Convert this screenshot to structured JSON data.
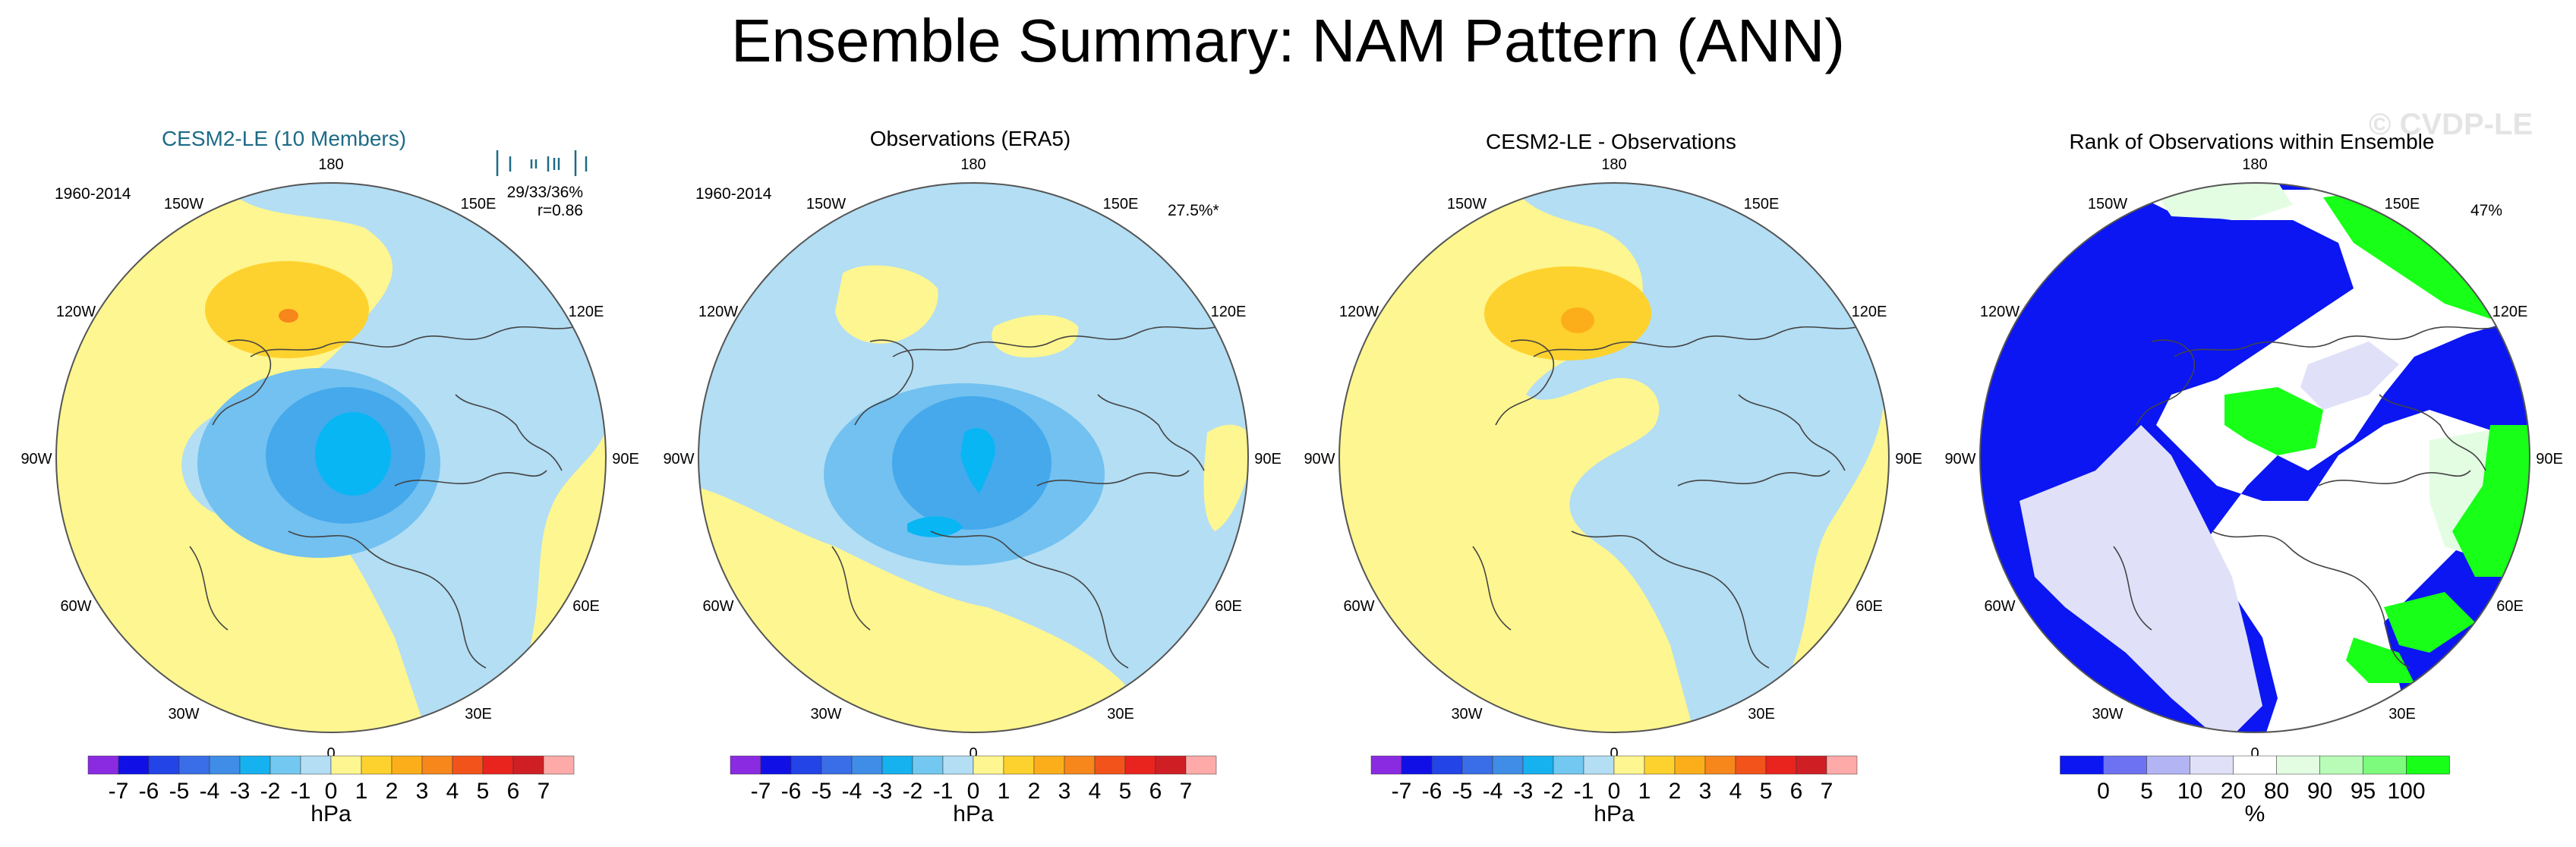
{
  "figure": {
    "title": "Ensemble Summary: NAM Pattern (ANN)",
    "watermark": "© CVDP-LE"
  },
  "colors": {
    "yellow": "#fef690",
    "light_orange": "#fed22e",
    "orange": "#fcae1a",
    "dark_orange": "#f7861b",
    "light_blue": "#b3def4",
    "mid_blue": "#72c1f0",
    "blue": "#45a9ec",
    "cyan": "#08b6f4",
    "rank_blue": "#0b16f2",
    "rank_lavender": "#e0e0f8",
    "rank_green": "#18ff18",
    "rank_light_green": "#e3fde3"
  },
  "chart_data": [
    {
      "type": "heatmap",
      "name": "cesm2-le",
      "title": "CESM2-LE (10 Members)",
      "period": "1960-2014",
      "stat_line1": "29/33/36%",
      "stat_line2": "r=0.86",
      "longitude_labels": [
        "180",
        "150E",
        "120E",
        "90E",
        "60E",
        "30E",
        "0",
        "30W",
        "60W",
        "90W",
        "120W",
        "150W"
      ],
      "colorbar": {
        "levels": [
          "-7",
          "-6",
          "-5",
          "-4",
          "-3",
          "-2",
          "-1",
          "0",
          "1",
          "2",
          "3",
          "4",
          "5",
          "6",
          "7"
        ],
        "colors": [
          "#8a2be2",
          "#1010e6",
          "#2344e6",
          "#3a6ee8",
          "#3f8de6",
          "#16b1ef",
          "#72c8f0",
          "#b3def4",
          "#fef690",
          "#fed22e",
          "#fcae1a",
          "#f7861b",
          "#f2531a",
          "#e9231e",
          "#cf1f25",
          "#fdaaa8"
        ],
        "unit": "hPa"
      }
    },
    {
      "type": "heatmap",
      "name": "observations",
      "title": "Observations (ERA5)",
      "period": "1960-2014",
      "stat_line1": "27.5%*",
      "longitude_labels": [
        "180",
        "150E",
        "120E",
        "90E",
        "60E",
        "30E",
        "0",
        "30W",
        "60W",
        "90W",
        "120W",
        "150W"
      ],
      "colorbar": {
        "levels": [
          "-7",
          "-6",
          "-5",
          "-4",
          "-3",
          "-2",
          "-1",
          "0",
          "1",
          "2",
          "3",
          "4",
          "5",
          "6",
          "7"
        ],
        "colors": [
          "#8a2be2",
          "#1010e6",
          "#2344e6",
          "#3a6ee8",
          "#3f8de6",
          "#16b1ef",
          "#72c8f0",
          "#b3def4",
          "#fef690",
          "#fed22e",
          "#fcae1a",
          "#f7861b",
          "#f2531a",
          "#e9231e",
          "#cf1f25",
          "#fdaaa8"
        ],
        "unit": "hPa"
      }
    },
    {
      "type": "heatmap",
      "name": "difference",
      "title": "CESM2-LE - Observations",
      "longitude_labels": [
        "180",
        "150E",
        "120E",
        "90E",
        "60E",
        "30E",
        "0",
        "30W",
        "60W",
        "90W",
        "120W",
        "150W"
      ],
      "colorbar": {
        "levels": [
          "-7",
          "-6",
          "-5",
          "-4",
          "-3",
          "-2",
          "-1",
          "0",
          "1",
          "2",
          "3",
          "4",
          "5",
          "6",
          "7"
        ],
        "colors": [
          "#8a2be2",
          "#1010e6",
          "#2344e6",
          "#3a6ee8",
          "#3f8de6",
          "#16b1ef",
          "#72c8f0",
          "#b3def4",
          "#fef690",
          "#fed22e",
          "#fcae1a",
          "#f7861b",
          "#f2531a",
          "#e9231e",
          "#cf1f25",
          "#fdaaa8"
        ],
        "unit": "hPa"
      }
    },
    {
      "type": "heatmap",
      "name": "rank",
      "title": "Rank of Observations within Ensemble",
      "stat_line1": "47%",
      "longitude_labels": [
        "180",
        "150E",
        "120E",
        "90E",
        "60E",
        "30E",
        "0",
        "30W",
        "60W",
        "90W",
        "120W",
        "150W"
      ],
      "colorbar": {
        "levels": [
          "0",
          "5",
          "10",
          "20",
          "80",
          "90",
          "95",
          "100"
        ],
        "colors": [
          "#0b16f2",
          "#6d72f2",
          "#b2b4f4",
          "#e0e0f8",
          "#ffffff",
          "#e3fde3",
          "#b8fcb8",
          "#7dfb7d",
          "#18ff18"
        ],
        "unit": "%"
      }
    }
  ]
}
